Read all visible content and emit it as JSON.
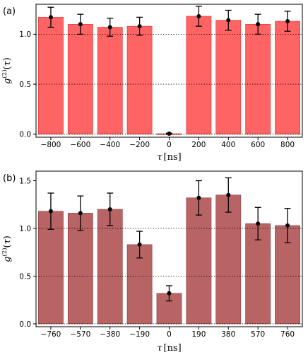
{
  "chart_data": [
    {
      "type": "bar",
      "panel_label": "(a)",
      "categories": [
        "−800",
        "−600",
        "−400",
        "−200",
        "0",
        "200",
        "400",
        "600",
        "800"
      ],
      "values": [
        1.17,
        1.1,
        1.07,
        1.08,
        0.005,
        1.18,
        1.14,
        1.1,
        1.13
      ],
      "errors": [
        0.1,
        0.1,
        0.09,
        0.09,
        0.005,
        0.1,
        0.1,
        0.1,
        0.1
      ],
      "ylim": [
        -0.03,
        1.3
      ],
      "yticks": [
        "0.0",
        "0.5",
        "1.0"
      ],
      "ytick_values": [
        0,
        0.5,
        1.0
      ],
      "reference_lines": [
        0,
        0.5,
        1.0
      ],
      "xlabel": {
        "symbol": "τ",
        "unit": "[ns]"
      },
      "ylabel": "g(2)(τ)",
      "color": "#ff6464",
      "edge_color": "#e03030"
    },
    {
      "type": "bar",
      "panel_label": "(b)",
      "categories": [
        "−760",
        "−570",
        "−380",
        "−190",
        "0",
        "190",
        "380",
        "570",
        "760"
      ],
      "values": [
        1.18,
        1.16,
        1.2,
        0.83,
        0.32,
        1.32,
        1.35,
        1.05,
        1.03
      ],
      "errors": [
        0.19,
        0.18,
        0.17,
        0.14,
        0.08,
        0.18,
        0.18,
        0.17,
        0.18
      ],
      "ylim": [
        -0.03,
        1.6
      ],
      "yticks": [
        "0.0",
        "0.5",
        "1.0",
        "1.5"
      ],
      "ytick_values": [
        0,
        0.5,
        1.0,
        1.5
      ],
      "reference_lines": [
        0,
        0.5,
        1.0
      ],
      "xlabel": {
        "symbol": "τ",
        "unit": "[ns]"
      },
      "ylabel": "g(2)(τ)",
      "color": "#b96464",
      "edge_color": "#8a3a3a"
    }
  ]
}
